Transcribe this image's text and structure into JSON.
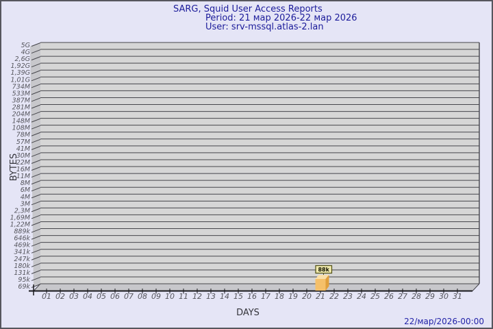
{
  "title": {
    "line1": "SARG, Squid User Access Reports",
    "line2": "Period: 21 мар 2026-22 мар 2026",
    "line3": "User: srv-mssql.atlas-2.lan"
  },
  "footer": {
    "timestamp": "22/мар/2026-00:00"
  },
  "chart_data": {
    "type": "bar",
    "title": "SARG, Squid User Access Reports",
    "period": "21 мар 2026-22 мар 2026",
    "user": "srv-mssql.atlas-2.lan",
    "xlabel": "DAYS",
    "ylabel": "BYTES",
    "y_scale": "log-like, labels top to bottom",
    "y_axis_labels": [
      "5G",
      "4G",
      "2,6G",
      "1,92G",
      "1,39G",
      "1,01G",
      "734M",
      "533M",
      "387M",
      "281M",
      "204M",
      "148M",
      "108M",
      "78M",
      "57M",
      "41M",
      "30M",
      "22M",
      "16M",
      "11M",
      "8M",
      "6M",
      "4M",
      "3M",
      "2,3M",
      "1,69M",
      "1,22M",
      "889k",
      "646k",
      "469k",
      "341k",
      "247k",
      "180k",
      "131k",
      "95k",
      "69k"
    ],
    "x_categories": [
      "01",
      "02",
      "03",
      "04",
      "05",
      "06",
      "07",
      "08",
      "09",
      "10",
      "11",
      "12",
      "13",
      "14",
      "15",
      "16",
      "17",
      "18",
      "19",
      "20",
      "21",
      "22",
      "23",
      "24",
      "25",
      "26",
      "27",
      "28",
      "29",
      "30",
      "31"
    ],
    "bars": [
      {
        "day": "21",
        "label": "88k"
      }
    ],
    "legend_position": "none",
    "grid": "horizontal lines at every y label, 3D wall left and floor bottom"
  },
  "colors": {
    "page_background": "#e5e5f6",
    "page_border": "#56565e",
    "title_text": "#1b1b9a",
    "timestamp_text": "#2222a8",
    "plot_background": "#d6d6d6",
    "wall_floor": "#c7c7cb",
    "grid_line": "#45454b",
    "axis_line": "#18181c",
    "tick_label": "#55555c",
    "bar_front": "#f5c06a",
    "bar_top": "#fadfa8",
    "bar_side": "#e09f3c",
    "value_box_bg": "#efe9ad",
    "value_box_border": "#4f4e13"
  }
}
